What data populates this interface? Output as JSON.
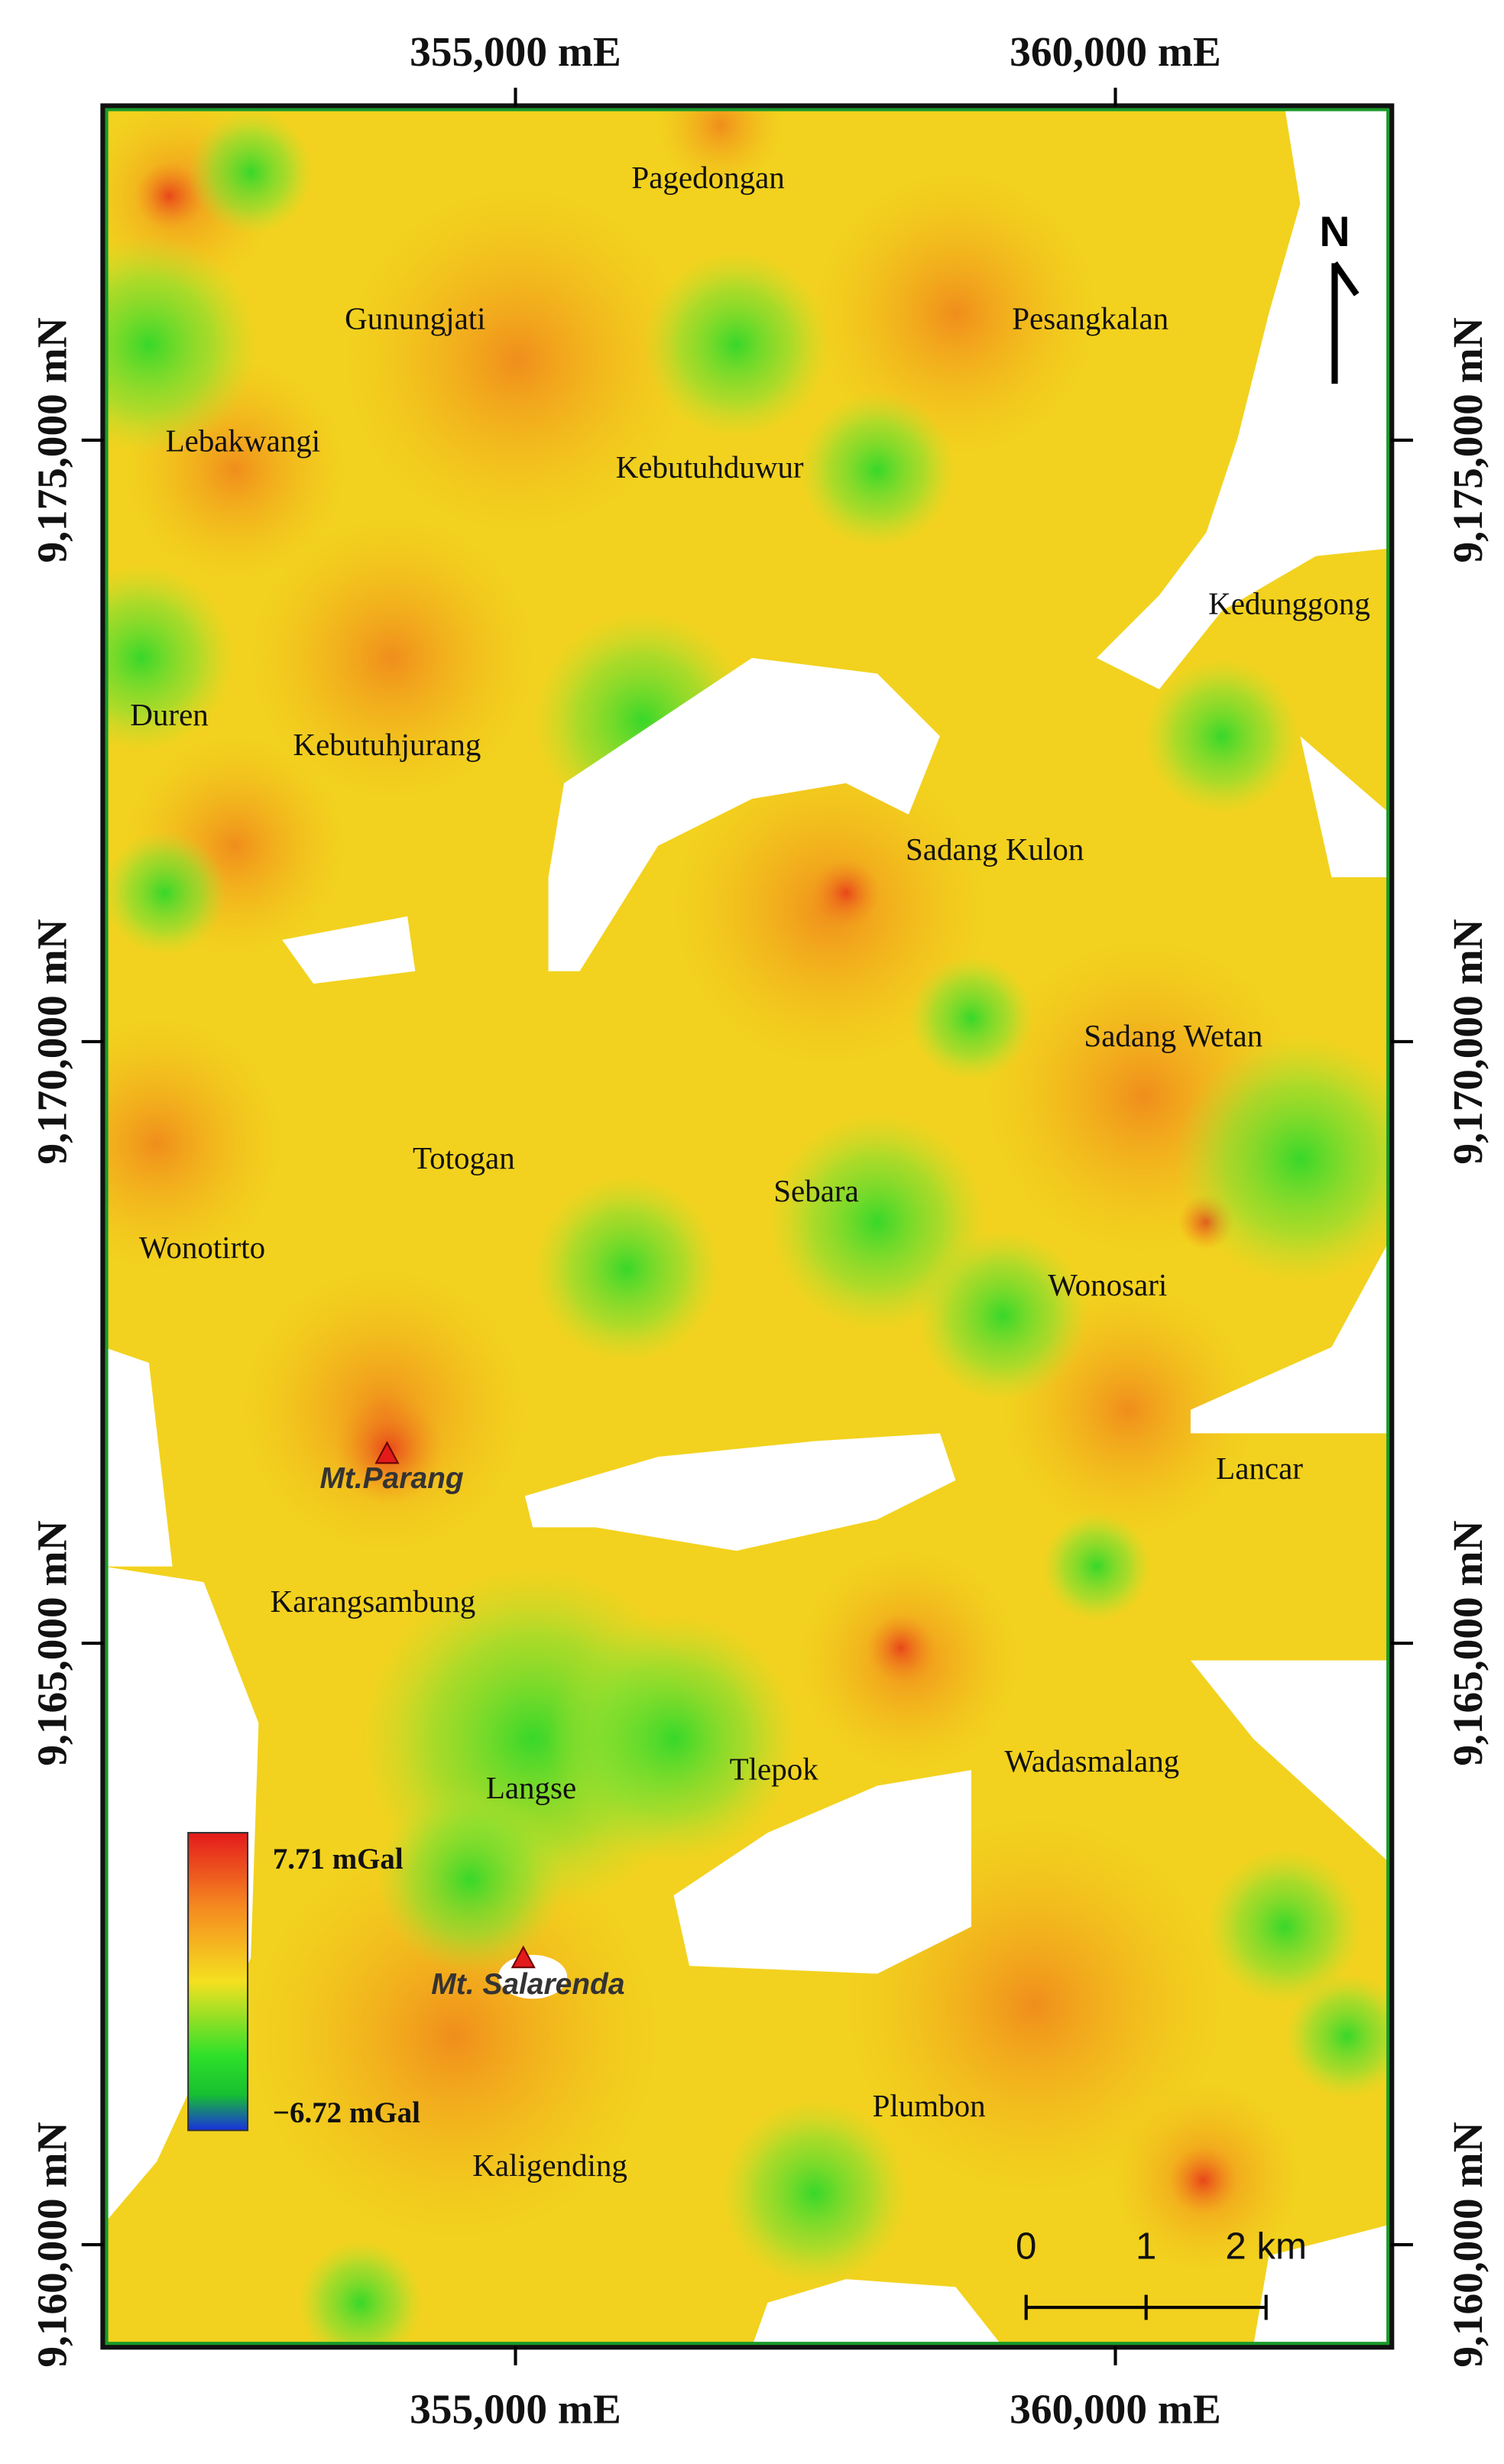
{
  "map": {
    "x_ticks": [
      {
        "value": 355000,
        "label": "355,000 mE"
      },
      {
        "value": 360000,
        "label": "360,000 mE"
      }
    ],
    "y_ticks": [
      {
        "value": 9175000,
        "label": "9,175,000 mN"
      },
      {
        "value": 9170000,
        "label": "9,170,000 mN"
      },
      {
        "value": 9165000,
        "label": "9,165,000 mN"
      },
      {
        "value": 9160000,
        "label": "9,160,000 mN"
      }
    ],
    "places": [
      "Pagedongan",
      "Gunungjati",
      "Pesangkalan",
      "Lebakwangi",
      "Kebutuhduwur",
      "Kedunggong",
      "Duren",
      "Kebutuhjurang",
      "Sadang Kulon",
      "Sadang Wetan",
      "Totogan",
      "Sebara",
      "Wonotirto",
      "Wonosari",
      "Lancar",
      "Karangsambung",
      "Wadasmalang",
      "Tlepok",
      "Langse",
      "Plumbon",
      "Kaligending"
    ],
    "peaks": [
      "Mt.Parang",
      "Mt. Salarenda"
    ],
    "legend": {
      "max": {
        "value": 7.71,
        "label": "7.71 mGal"
      },
      "min": {
        "value": -6.72,
        "label": "−6.72 mGal"
      }
    },
    "scale_bar": [
      0,
      1,
      {
        "value": 2,
        "label": "2 km"
      }
    ],
    "north": "N"
  }
}
